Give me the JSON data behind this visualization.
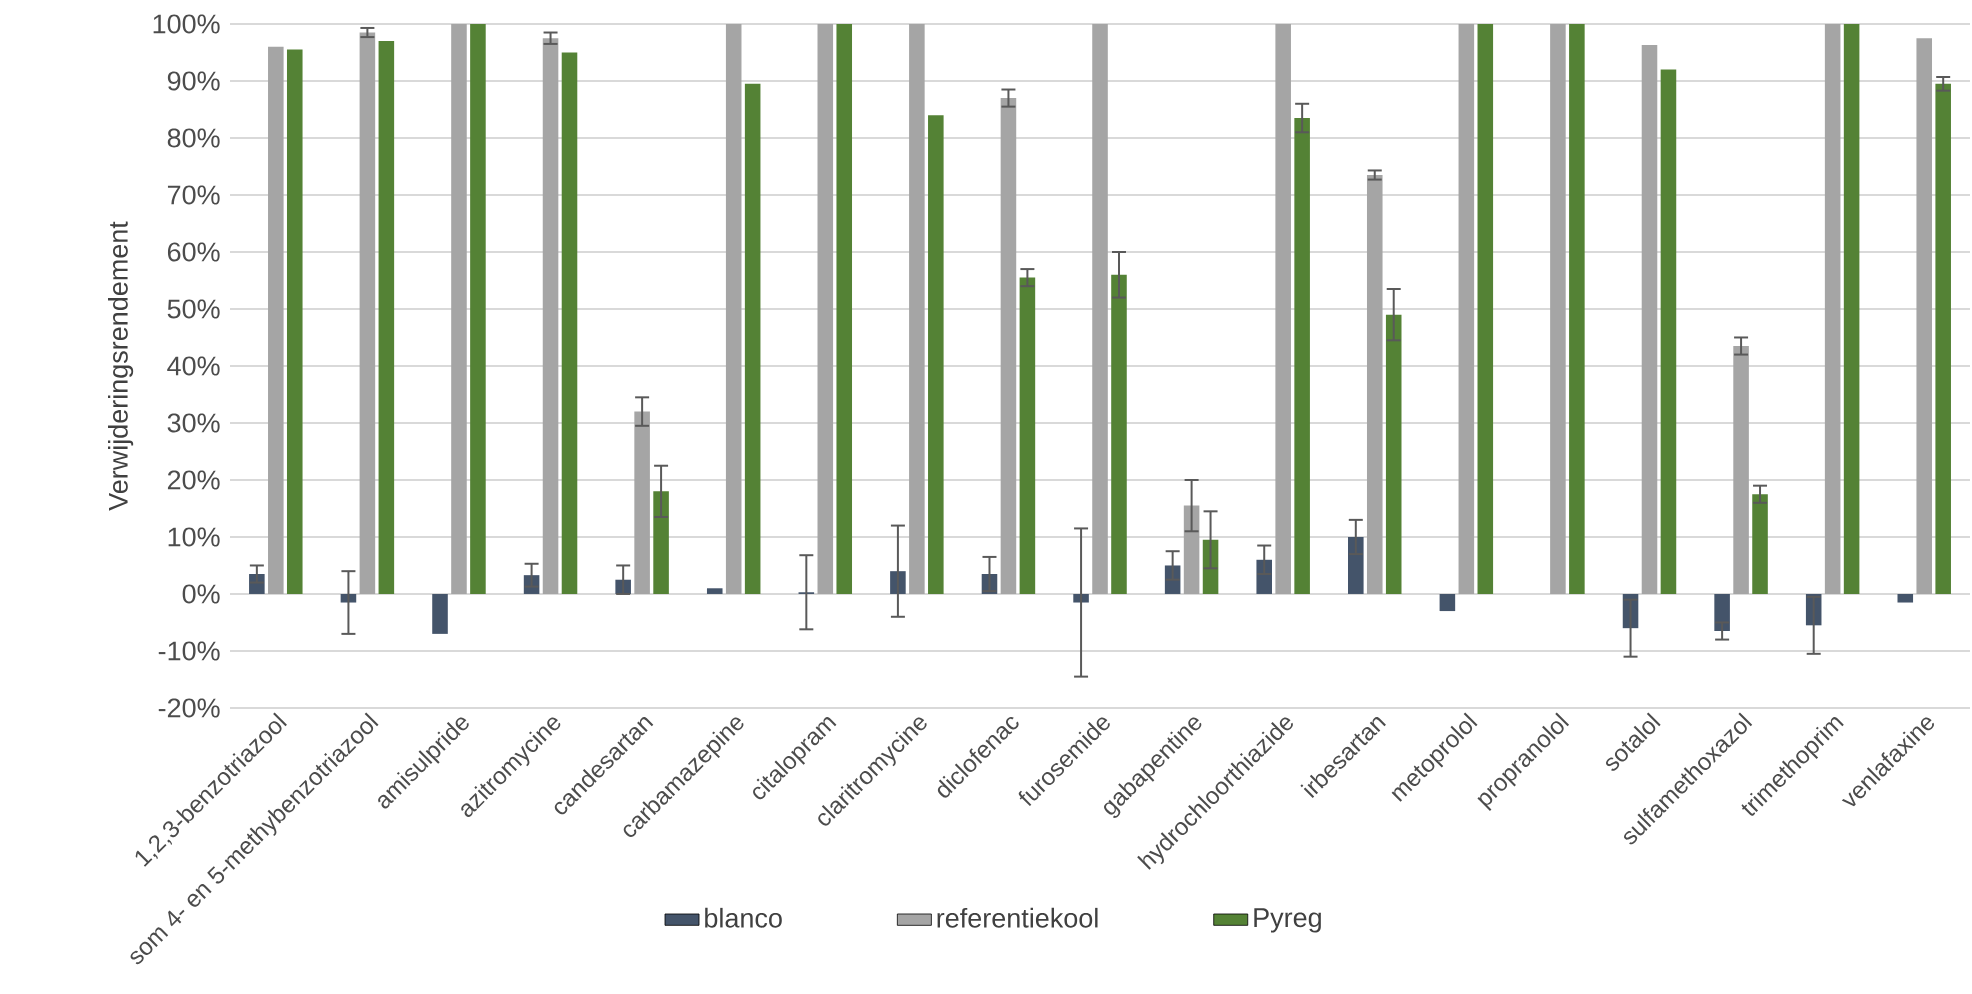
{
  "chart_data": {
    "type": "bar",
    "ylabel": "Verwijderingsrendement",
    "categories": [
      "1,2,3-benzotriazool",
      "som 4- en 5-methybenzotriazool",
      "amisulpride",
      "azitromycine",
      "candesartan",
      "carbamazepine",
      "citalopram",
      "claritromycine",
      "diclofenac",
      "furosemide",
      "gabapentine",
      "hydrochloorthiazide",
      "irbesartan",
      "metoprolol",
      "propranolol",
      "sotalol",
      "sulfamethoxazol",
      "trimethoprim",
      "venlafaxine"
    ],
    "series": [
      {
        "name": "blanco",
        "color": "#44546a",
        "values": [
          3.5,
          -1.5,
          -7,
          3.3,
          2.5,
          1,
          0.3,
          4,
          3.5,
          -1.5,
          5,
          6,
          10,
          -3,
          0,
          -6,
          -6.5,
          -5.5,
          -1.5
        ],
        "errors": [
          1.5,
          5.5,
          null,
          2,
          2.5,
          null,
          6.5,
          8,
          3,
          13,
          2.5,
          2.5,
          3,
          null,
          null,
          5,
          1.5,
          5,
          null
        ]
      },
      {
        "name": "referentiekool",
        "color": "#a5a5a5",
        "values": [
          96,
          98.5,
          100,
          97.5,
          32,
          100,
          100,
          100,
          87,
          100,
          15.5,
          100,
          73.5,
          100,
          100,
          96.3,
          43.5,
          100,
          97.5
        ],
        "errors": [
          null,
          0.8,
          null,
          1,
          2.5,
          null,
          null,
          null,
          1.5,
          null,
          4.5,
          null,
          0.8,
          null,
          null,
          null,
          1.5,
          null,
          null
        ]
      },
      {
        "name": "Pyreg",
        "color": "#548235",
        "values": [
          95.5,
          97,
          100,
          95,
          18,
          89.5,
          100,
          84,
          55.5,
          56,
          9.5,
          83.5,
          49,
          100,
          100,
          92,
          17.5,
          100,
          89.5
        ],
        "errors": [
          null,
          null,
          null,
          null,
          4.5,
          null,
          null,
          null,
          1.5,
          4,
          5,
          2.5,
          4.5,
          null,
          null,
          null,
          1.5,
          null,
          1.2
        ]
      }
    ],
    "ylim": [
      -20,
      100
    ],
    "yticks": [
      {
        "value": -20,
        "label": "-20%"
      },
      {
        "value": -10,
        "label": "-10%"
      },
      {
        "value": 0,
        "label": "0%"
      },
      {
        "value": 10,
        "label": "10%"
      },
      {
        "value": 20,
        "label": "20%"
      },
      {
        "value": 30,
        "label": "30%"
      },
      {
        "value": 40,
        "label": "40%"
      },
      {
        "value": 50,
        "label": "50%"
      },
      {
        "value": 60,
        "label": "60%"
      },
      {
        "value": 70,
        "label": "70%"
      },
      {
        "value": 80,
        "label": "80%"
      },
      {
        "value": 90,
        "label": "90%"
      },
      {
        "value": 100,
        "label": "100%"
      }
    ],
    "grid": "y",
    "legend": "bottom"
  }
}
